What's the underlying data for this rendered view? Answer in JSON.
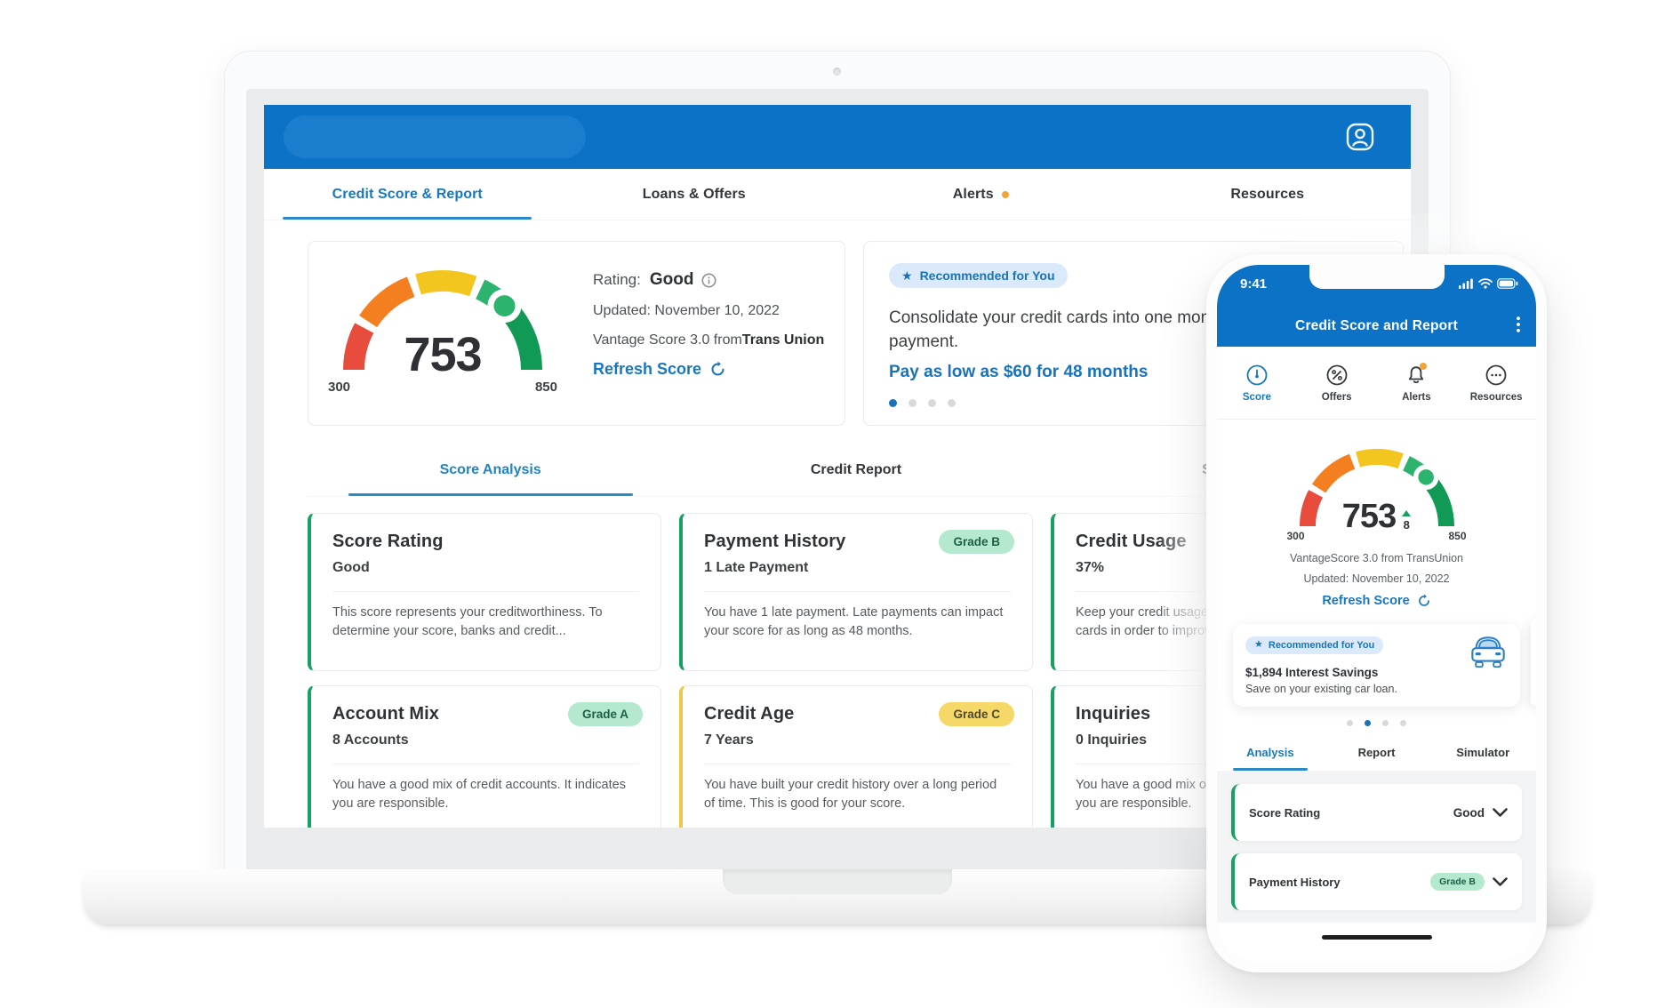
{
  "colors": {
    "header_blue": "#0b72c6",
    "accent_blue": "#1878bf",
    "badge_blue_bg": "#dbeafa",
    "alert_dot_orange": "#f2a33c",
    "grade_green_bg": "#b4e9d0",
    "grade_yellow_bg": "#f6d868",
    "gauge_red": "#e84c3d",
    "gauge_orange": "#f47f20",
    "gauge_yellow": "#f3c51f",
    "gauge_green_light": "#2cb36d",
    "gauge_green_dark": "#109a55",
    "factor_border_green": "#16a261",
    "factor_border_yellow": "#eec84a"
  },
  "laptop": {
    "nav_tabs": [
      {
        "label": "Credit Score & Report",
        "active": true
      },
      {
        "label": "Loans & Offers",
        "active": false
      },
      {
        "label": "Alerts",
        "active": false,
        "has_dot": true
      },
      {
        "label": "Resources",
        "active": false
      }
    ],
    "score_card": {
      "score": "753",
      "min": "300",
      "max": "850",
      "rating_label": "Rating:",
      "rating_value": "Good",
      "updated": "Updated: November 10, 2022",
      "provider_prefix": "Vantage Score 3.0 from",
      "provider_bold": "Trans Union",
      "refresh_label": "Refresh Score"
    },
    "offer_card": {
      "badge": "Recommended for You",
      "text": "Consolidate your credit cards into one monthly\npayment.",
      "cta": "Pay as low as $60 for 48 months",
      "dots": 4,
      "active_dot": 0
    },
    "sub_tabs": [
      {
        "label": "Score Analysis",
        "active": true
      },
      {
        "label": "Credit Report",
        "active": false
      },
      {
        "label": "Score",
        "active": false
      }
    ],
    "factor_cards": [
      {
        "title": "Score Rating",
        "value": "Good",
        "grade": "",
        "desc": "This score represents your creditworthiness. To\ndetermine your score, banks and credit..."
      },
      {
        "title": "Payment History",
        "value": "1 Late Payment",
        "grade": "Grade B",
        "desc": "You have 1 late payment. Late payments can impact\nyour score for as long as 48 months."
      },
      {
        "title": "Credit Usage",
        "value": "37%",
        "grade": "",
        "desc": "Keep your credit usage\ncards in order to improv"
      },
      {
        "title": "Account Mix",
        "value": "8 Accounts",
        "grade": "Grade A",
        "desc": "You have a good mix of credit accounts. It indicates\nyou are responsible."
      },
      {
        "title": "Credit Age",
        "value": "7 Years",
        "grade": "Grade C",
        "desc": "You have built your credit history over a long period\nof time. This is good for your score."
      },
      {
        "title": "Inquiries",
        "value": "0 Inquiries",
        "grade": "",
        "desc": "You have a good mix of\nyou are responsible."
      }
    ]
  },
  "phone": {
    "status_time": "9:41",
    "header_title": "Credit Score and Report",
    "nav": [
      {
        "label": "Score",
        "active": true
      },
      {
        "label": "Offers",
        "active": false
      },
      {
        "label": "Alerts",
        "active": false,
        "has_dot": true
      },
      {
        "label": "Resources",
        "active": false
      }
    ],
    "score": {
      "value": "753",
      "delta": "8",
      "min": "300",
      "max": "850",
      "provider": "VantageScore 3.0 from TransUnion",
      "updated": "Updated: November 10, 2022",
      "refresh_label": "Refresh Score"
    },
    "offer": {
      "badge": "Recommended for You",
      "title": "$1,894 Interest Savings",
      "text": "Save on your existing car loan.",
      "dots": 4,
      "active_dot": 1
    },
    "tabs": [
      {
        "label": "Analysis",
        "active": true
      },
      {
        "label": "Report",
        "active": false
      },
      {
        "label": "Simulator",
        "active": false
      }
    ],
    "rows": [
      {
        "title": "Score Rating",
        "value": "Good",
        "grade": ""
      },
      {
        "title": "Payment History",
        "value": "",
        "grade": "Grade B"
      }
    ]
  }
}
